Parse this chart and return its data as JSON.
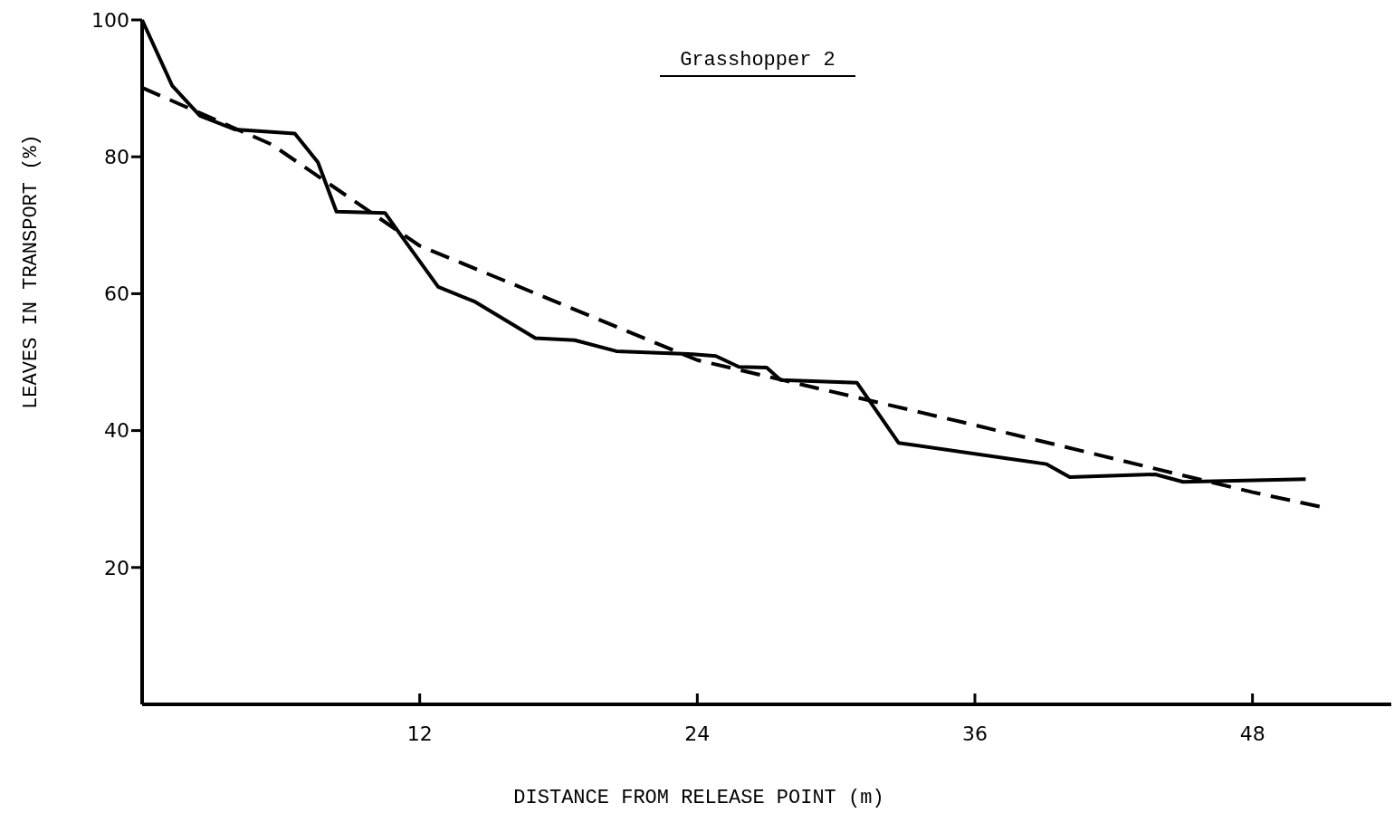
{
  "chart_data": {
    "type": "line",
    "title": "Grasshopper 2",
    "xlabel": "DISTANCE FROM RELEASE POINT (m)",
    "ylabel": "LEAVES IN TRANSPORT (%)",
    "xlim": [
      0,
      54
    ],
    "ylim": [
      0,
      100
    ],
    "xticks": [
      12,
      24,
      36,
      48
    ],
    "yticks": [
      20,
      40,
      60,
      80,
      100
    ],
    "grid": false,
    "marker": "none",
    "series": [
      {
        "color": "#000000",
        "line_style": "solid",
        "x": [
          0,
          1.3,
          2.5,
          4.0,
          6.6,
          7.6,
          8.4,
          10.5,
          11.3,
          12.8,
          14.4,
          17.0,
          18.7,
          20.5,
          23.6,
          24.8,
          25.8,
          27.0,
          27.6,
          30.9,
          32.7,
          39.1,
          40.1,
          43.8,
          45.0,
          50.3
        ],
        "values": [
          100,
          90.4,
          86,
          84,
          83.4,
          79.2,
          72,
          71.8,
          68,
          61,
          58.8,
          53.5,
          53.2,
          51.6,
          51.2,
          50.9,
          49.3,
          49.2,
          47.4,
          47,
          38.2,
          35.1,
          33.2,
          33.6,
          32.5,
          32.9
        ]
      },
      {
        "color": "#000000",
        "line_style": "dashed",
        "x": [
          0,
          5.6,
          12,
          24,
          36,
          48,
          50.9
        ],
        "values": [
          90.1,
          81.8,
          67,
          50.3,
          40.8,
          31,
          28.9
        ]
      }
    ]
  }
}
